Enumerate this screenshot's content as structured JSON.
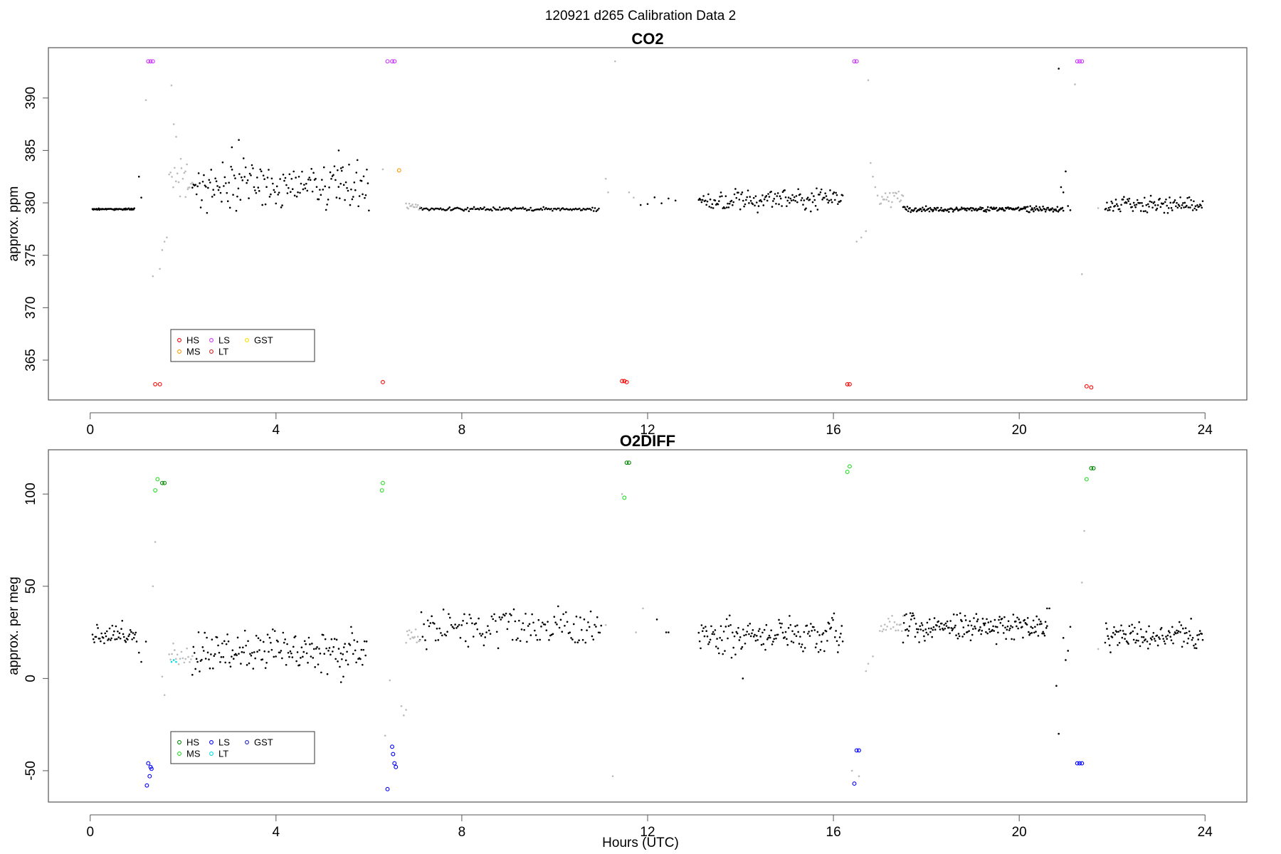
{
  "figure": {
    "supertitle": "120921   d265   Calibration Data 2",
    "xlabel": "Hours (UTC)"
  },
  "chart_data": [
    {
      "type": "scatter",
      "title": "CO2",
      "ylabel": "approx. ppm",
      "xlim": [
        -0.9,
        24.9
      ],
      "ylim": [
        361.2,
        394.8
      ],
      "xticks": [
        0,
        4,
        8,
        12,
        16,
        20,
        24
      ],
      "yticks": [
        365,
        370,
        375,
        380,
        385,
        390
      ],
      "legend": {
        "position": "bottom-left",
        "entries": [
          {
            "name": "HS",
            "color": "#ff0000"
          },
          {
            "name": "MS",
            "color": "#ff9900"
          },
          {
            "name": "LS",
            "color": "#cc33ff"
          },
          {
            "name": "LT",
            "color": "#cc2222"
          },
          {
            "name": "GST",
            "color": "#ffdd00"
          }
        ]
      },
      "background_segments": [
        {
          "x0": 0.05,
          "x1": 0.95,
          "base": 379.4,
          "noise": 0.05,
          "n": 55,
          "color": "#000000"
        },
        {
          "x0": 2.2,
          "x1": 6.0,
          "base": 381.7,
          "noise": 1.4,
          "n": 170,
          "color": "#000000"
        },
        {
          "x0": 7.1,
          "x1": 10.95,
          "base": 379.4,
          "noise": 0.12,
          "n": 140,
          "color": "#000000"
        },
        {
          "x0": 11.85,
          "x1": 12.6,
          "base": 380.3,
          "noise": 0.5,
          "n": 6,
          "color": "#000000"
        },
        {
          "x0": 13.1,
          "x1": 16.2,
          "base": 380.3,
          "noise": 0.7,
          "n": 150,
          "color": "#000000"
        },
        {
          "x0": 17.5,
          "x1": 20.95,
          "base": 379.4,
          "noise": 0.2,
          "n": 190,
          "color": "#000000"
        },
        {
          "x0": 21.85,
          "x1": 23.95,
          "base": 379.8,
          "noise": 0.5,
          "n": 110,
          "color": "#000000"
        },
        {
          "x0": 1.7,
          "x1": 2.2,
          "base": 382.5,
          "noise": 1.5,
          "n": 18,
          "color": "#bbbbbb"
        },
        {
          "x0": 6.8,
          "x1": 7.1,
          "base": 379.6,
          "noise": 0.3,
          "n": 14,
          "color": "#bbbbbb"
        },
        {
          "x0": 17.0,
          "x1": 17.5,
          "base": 380.3,
          "noise": 0.6,
          "n": 22,
          "color": "#bbbbbb"
        }
      ],
      "extra_points": [
        {
          "x": 1.05,
          "y": 382.5,
          "color": "#000000"
        },
        {
          "x": 1.1,
          "y": 380.5,
          "color": "#000000"
        },
        {
          "x": 1.2,
          "y": 389.8,
          "color": "#bbbbbb"
        },
        {
          "x": 1.35,
          "y": 373.0,
          "color": "#bbbbbb"
        },
        {
          "x": 1.5,
          "y": 373.7,
          "color": "#bbbbbb"
        },
        {
          "x": 1.55,
          "y": 375.5,
          "color": "#bbbbbb"
        },
        {
          "x": 1.6,
          "y": 376.3,
          "color": "#bbbbbb"
        },
        {
          "x": 1.65,
          "y": 376.7,
          "color": "#bbbbbb"
        },
        {
          "x": 1.75,
          "y": 391.2,
          "color": "#bbbbbb"
        },
        {
          "x": 1.8,
          "y": 387.5,
          "color": "#bbbbbb"
        },
        {
          "x": 1.85,
          "y": 386.3,
          "color": "#bbbbbb"
        },
        {
          "x": 1.95,
          "y": 384.2,
          "color": "#bbbbbb"
        },
        {
          "x": 2.05,
          "y": 383.0,
          "color": "#bbbbbb"
        },
        {
          "x": 2.1,
          "y": 381.3,
          "color": "#bbbbbb"
        },
        {
          "x": 3.2,
          "y": 386.0,
          "color": "#000000"
        },
        {
          "x": 3.05,
          "y": 385.3,
          "color": "#000000"
        },
        {
          "x": 5.35,
          "y": 385.0,
          "color": "#000000"
        },
        {
          "x": 5.4,
          "y": 383.3,
          "color": "#000000"
        },
        {
          "x": 6.3,
          "y": 383.2,
          "color": "#bbbbbb"
        },
        {
          "x": 11.3,
          "y": 393.5,
          "color": "#bbbbbb"
        },
        {
          "x": 11.1,
          "y": 382.3,
          "color": "#bbbbbb"
        },
        {
          "x": 11.15,
          "y": 381.0,
          "color": "#bbbbbb"
        },
        {
          "x": 11.6,
          "y": 381.0,
          "color": "#bbbbbb"
        },
        {
          "x": 11.7,
          "y": 380.5,
          "color": "#bbbbbb"
        },
        {
          "x": 16.5,
          "y": 376.3,
          "color": "#bbbbbb"
        },
        {
          "x": 16.6,
          "y": 376.7,
          "color": "#bbbbbb"
        },
        {
          "x": 16.7,
          "y": 377.3,
          "color": "#bbbbbb"
        },
        {
          "x": 16.75,
          "y": 391.7,
          "color": "#bbbbbb"
        },
        {
          "x": 16.8,
          "y": 383.8,
          "color": "#bbbbbb"
        },
        {
          "x": 16.85,
          "y": 382.5,
          "color": "#bbbbbb"
        },
        {
          "x": 16.9,
          "y": 381.5,
          "color": "#bbbbbb"
        },
        {
          "x": 16.95,
          "y": 380.7,
          "color": "#bbbbbb"
        },
        {
          "x": 20.85,
          "y": 392.8,
          "color": "#000000"
        },
        {
          "x": 20.9,
          "y": 381.5,
          "color": "#000000"
        },
        {
          "x": 20.95,
          "y": 381.0,
          "color": "#000000"
        },
        {
          "x": 21.0,
          "y": 383.0,
          "color": "#000000"
        },
        {
          "x": 21.05,
          "y": 379.7,
          "color": "#000000"
        },
        {
          "x": 21.1,
          "y": 379.3,
          "color": "#000000"
        },
        {
          "x": 21.2,
          "y": 391.3,
          "color": "#bbbbbb"
        },
        {
          "x": 21.35,
          "y": 373.2,
          "color": "#bbbbbb"
        },
        {
          "x": 21.7,
          "y": 379.5,
          "color": "#bbbbbb"
        }
      ],
      "calibration_points": [
        {
          "x": 1.25,
          "y": 393.5,
          "color": "#cc33ff"
        },
        {
          "x": 1.3,
          "y": 393.5,
          "color": "#cc33ff"
        },
        {
          "x": 1.35,
          "y": 393.5,
          "color": "#cc33ff"
        },
        {
          "x": 1.4,
          "y": 362.7,
          "color": "#ff0000"
        },
        {
          "x": 1.5,
          "y": 362.7,
          "color": "#ff0000"
        },
        {
          "x": 6.3,
          "y": 362.9,
          "color": "#ff0000"
        },
        {
          "x": 6.4,
          "y": 393.5,
          "color": "#cc33ff"
        },
        {
          "x": 6.5,
          "y": 393.5,
          "color": "#cc33ff"
        },
        {
          "x": 6.55,
          "y": 393.5,
          "color": "#cc33ff"
        },
        {
          "x": 6.65,
          "y": 383.1,
          "color": "#ff9900"
        },
        {
          "x": 11.45,
          "y": 363.0,
          "color": "#ff0000"
        },
        {
          "x": 11.5,
          "y": 363.0,
          "color": "#ff0000"
        },
        {
          "x": 11.55,
          "y": 362.9,
          "color": "#ff0000"
        },
        {
          "x": 16.3,
          "y": 362.7,
          "color": "#ff0000"
        },
        {
          "x": 16.35,
          "y": 362.7,
          "color": "#ff0000"
        },
        {
          "x": 16.45,
          "y": 393.5,
          "color": "#cc33ff"
        },
        {
          "x": 16.5,
          "y": 393.5,
          "color": "#cc33ff"
        },
        {
          "x": 21.25,
          "y": 393.5,
          "color": "#cc33ff"
        },
        {
          "x": 21.3,
          "y": 393.5,
          "color": "#cc33ff"
        },
        {
          "x": 21.35,
          "y": 393.5,
          "color": "#cc33ff"
        },
        {
          "x": 21.45,
          "y": 362.5,
          "color": "#ff0000"
        },
        {
          "x": 21.55,
          "y": 362.4,
          "color": "#ff0000"
        }
      ]
    },
    {
      "type": "scatter",
      "title": "O2DIFF",
      "ylabel": "approx. per meg",
      "xlim": [
        -0.9,
        24.9
      ],
      "ylim": [
        -67,
        124
      ],
      "xticks": [
        0,
        4,
        8,
        12,
        16,
        20,
        24
      ],
      "yticks": [
        -50,
        0,
        50,
        100
      ],
      "legend": {
        "position": "bottom-left",
        "entries": [
          {
            "name": "HS",
            "color": "#008800"
          },
          {
            "name": "MS",
            "color": "#22dd22"
          },
          {
            "name": "LS",
            "color": "#0000ff"
          },
          {
            "name": "LT",
            "color": "#00dddd"
          },
          {
            "name": "GST",
            "color": "#2222aa"
          }
        ]
      },
      "background_segments": [
        {
          "x0": 0.05,
          "x1": 1.0,
          "base": 24,
          "noise": 4,
          "n": 50,
          "color": "#000000"
        },
        {
          "x0": 2.2,
          "x1": 5.95,
          "base": 15,
          "noise": 7,
          "n": 170,
          "color": "#000000"
        },
        {
          "x0": 7.1,
          "x1": 11.0,
          "base": 27,
          "noise": 7,
          "n": 140,
          "color": "#000000"
        },
        {
          "x0": 13.1,
          "x1": 16.2,
          "base": 24,
          "noise": 7,
          "n": 150,
          "color": "#000000"
        },
        {
          "x0": 17.5,
          "x1": 20.6,
          "base": 28,
          "noise": 5,
          "n": 180,
          "color": "#000000"
        },
        {
          "x0": 21.85,
          "x1": 23.95,
          "base": 23,
          "noise": 5,
          "n": 110,
          "color": "#000000"
        },
        {
          "x0": 1.7,
          "x1": 2.2,
          "base": 12,
          "noise": 4,
          "n": 18,
          "color": "#bbbbbb"
        },
        {
          "x0": 6.8,
          "x1": 7.1,
          "base": 24,
          "noise": 3,
          "n": 14,
          "color": "#bbbbbb"
        },
        {
          "x0": 17.0,
          "x1": 17.5,
          "base": 28,
          "noise": 4,
          "n": 20,
          "color": "#bbbbbb"
        }
      ],
      "extra_points": [
        {
          "x": 1.05,
          "y": 14,
          "color": "#000000"
        },
        {
          "x": 1.1,
          "y": 9,
          "color": "#000000"
        },
        {
          "x": 1.2,
          "y": 20,
          "color": "#000000"
        },
        {
          "x": 1.4,
          "y": 74,
          "color": "#bbbbbb"
        },
        {
          "x": 1.35,
          "y": 50,
          "color": "#bbbbbb"
        },
        {
          "x": 1.55,
          "y": 1,
          "color": "#bbbbbb"
        },
        {
          "x": 1.6,
          "y": -9,
          "color": "#bbbbbb"
        },
        {
          "x": 1.75,
          "y": 9,
          "color": "#00dddd"
        },
        {
          "x": 1.8,
          "y": 10,
          "color": "#00dddd"
        },
        {
          "x": 1.85,
          "y": 9,
          "color": "#00dddd"
        },
        {
          "x": 5.4,
          "y": -2,
          "color": "#000000"
        },
        {
          "x": 5.45,
          "y": 1,
          "color": "#000000"
        },
        {
          "x": 6.45,
          "y": -1,
          "color": "#bbbbbb"
        },
        {
          "x": 6.7,
          "y": -15,
          "color": "#bbbbbb"
        },
        {
          "x": 6.75,
          "y": -20,
          "color": "#bbbbbb"
        },
        {
          "x": 6.8,
          "y": -17,
          "color": "#bbbbbb"
        },
        {
          "x": 6.35,
          "y": -31,
          "color": "#bbbbbb"
        },
        {
          "x": 11.25,
          "y": -53,
          "color": "#bbbbbb"
        },
        {
          "x": 11.1,
          "y": 29,
          "color": "#bbbbbb"
        },
        {
          "x": 11.45,
          "y": 100,
          "color": "#bbbbbb"
        },
        {
          "x": 11.75,
          "y": 25,
          "color": "#bbbbbb"
        },
        {
          "x": 12.4,
          "y": 25,
          "color": "#000000"
        },
        {
          "x": 12.45,
          "y": 25,
          "color": "#000000"
        },
        {
          "x": 11.9,
          "y": 38,
          "color": "#bbbbbb"
        },
        {
          "x": 12.2,
          "y": 32,
          "color": "#000000"
        },
        {
          "x": 14.05,
          "y": 0,
          "color": "#000000"
        },
        {
          "x": 16.4,
          "y": -50,
          "color": "#bbbbbb"
        },
        {
          "x": 16.55,
          "y": -53,
          "color": "#bbbbbb"
        },
        {
          "x": 16.7,
          "y": 4,
          "color": "#bbbbbb"
        },
        {
          "x": 16.75,
          "y": 8,
          "color": "#bbbbbb"
        },
        {
          "x": 16.85,
          "y": 12,
          "color": "#bbbbbb"
        },
        {
          "x": 20.6,
          "y": 38,
          "color": "#000000"
        },
        {
          "x": 20.65,
          "y": 38,
          "color": "#000000"
        },
        {
          "x": 20.8,
          "y": -4,
          "color": "#000000"
        },
        {
          "x": 20.85,
          "y": -30,
          "color": "#000000"
        },
        {
          "x": 20.95,
          "y": 22,
          "color": "#000000"
        },
        {
          "x": 21.0,
          "y": 10,
          "color": "#000000"
        },
        {
          "x": 21.05,
          "y": 15,
          "color": "#000000"
        },
        {
          "x": 21.1,
          "y": 28,
          "color": "#000000"
        },
        {
          "x": 21.4,
          "y": 80,
          "color": "#bbbbbb"
        },
        {
          "x": 21.35,
          "y": 52,
          "color": "#bbbbbb"
        },
        {
          "x": 21.7,
          "y": 16,
          "color": "#bbbbbb"
        }
      ],
      "calibration_points": [
        {
          "x": 1.25,
          "y": -46,
          "color": "#0000ff"
        },
        {
          "x": 1.3,
          "y": -48,
          "color": "#0000ff"
        },
        {
          "x": 1.32,
          "y": -49,
          "color": "#0000ff"
        },
        {
          "x": 1.28,
          "y": -53,
          "color": "#0000ff"
        },
        {
          "x": 1.22,
          "y": -58,
          "color": "#0000ff"
        },
        {
          "x": 1.4,
          "y": 102,
          "color": "#22dd22"
        },
        {
          "x": 1.45,
          "y": 108,
          "color": "#22dd22"
        },
        {
          "x": 1.55,
          "y": 106,
          "color": "#008800"
        },
        {
          "x": 1.6,
          "y": 106,
          "color": "#008800"
        },
        {
          "x": 6.3,
          "y": 106,
          "color": "#22dd22"
        },
        {
          "x": 6.28,
          "y": 102,
          "color": "#22dd22"
        },
        {
          "x": 6.4,
          "y": -60,
          "color": "#0000ff"
        },
        {
          "x": 6.5,
          "y": -37,
          "color": "#0000ff"
        },
        {
          "x": 6.52,
          "y": -41,
          "color": "#0000ff"
        },
        {
          "x": 6.55,
          "y": -46,
          "color": "#0000ff"
        },
        {
          "x": 6.58,
          "y": -48,
          "color": "#0000ff"
        },
        {
          "x": 11.5,
          "y": 98,
          "color": "#22dd22"
        },
        {
          "x": 11.55,
          "y": 117,
          "color": "#008800"
        },
        {
          "x": 11.6,
          "y": 117,
          "color": "#008800"
        },
        {
          "x": 16.3,
          "y": 112,
          "color": "#22dd22"
        },
        {
          "x": 16.35,
          "y": 115,
          "color": "#22dd22"
        },
        {
          "x": 16.45,
          "y": -57,
          "color": "#0000ff"
        },
        {
          "x": 16.5,
          "y": -39,
          "color": "#0000ff"
        },
        {
          "x": 16.55,
          "y": -39,
          "color": "#0000ff"
        },
        {
          "x": 21.25,
          "y": -46,
          "color": "#0000ff"
        },
        {
          "x": 21.3,
          "y": -46,
          "color": "#0000ff"
        },
        {
          "x": 21.35,
          "y": -46,
          "color": "#0000ff"
        },
        {
          "x": 21.45,
          "y": 108,
          "color": "#22dd22"
        },
        {
          "x": 21.55,
          "y": 114,
          "color": "#008800"
        },
        {
          "x": 21.6,
          "y": 114,
          "color": "#008800"
        }
      ]
    }
  ]
}
